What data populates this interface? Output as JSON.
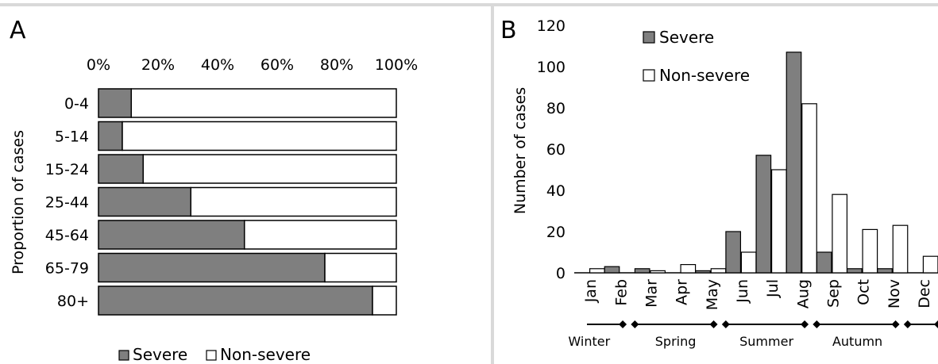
{
  "colors": {
    "severe": "#7f7f7f",
    "non_severe": "#ffffff",
    "outline": "#000000"
  },
  "panel_a": {
    "label": "A"
  },
  "panel_b": {
    "label": "B"
  },
  "chart_data": [
    {
      "type": "bar",
      "orientation": "horizontal",
      "stacked": "percent",
      "ylabel": "Proportion of cases",
      "categories": [
        "0-4",
        "5-14",
        "15-24",
        "25-44",
        "45-64",
        "65-79",
        "80+"
      ],
      "xticks": [
        "0%",
        "20%",
        "40%",
        "60%",
        "80%",
        "100%"
      ],
      "xlim": [
        0,
        100
      ],
      "series": [
        {
          "name": "Severe",
          "values": [
            11,
            8,
            15,
            31,
            49,
            76,
            92
          ]
        },
        {
          "name": "Non-severe",
          "values": [
            89,
            92,
            85,
            69,
            51,
            24,
            8
          ]
        }
      ],
      "legend": {
        "placement": "bottom",
        "items": [
          "Severe",
          "Non-severe"
        ]
      }
    },
    {
      "type": "bar",
      "ylabel": "Number of cases",
      "ylim": [
        0,
        120
      ],
      "yticks": [
        "0",
        "20",
        "40",
        "60",
        "80",
        "100",
        "120"
      ],
      "categories": [
        "Jan",
        "Feb",
        "Mar",
        "Apr",
        "May",
        "Jun",
        "Jul",
        "Aug",
        "Sep",
        "Oct",
        "Nov",
        "Dec"
      ],
      "series": [
        {
          "name": "Severe",
          "values": [
            0,
            3,
            2,
            0,
            1,
            20,
            57,
            107,
            10,
            2,
            2,
            0
          ]
        },
        {
          "name": "Non-severe",
          "values": [
            2,
            0,
            1,
            4,
            2,
            10,
            50,
            82,
            38,
            21,
            23,
            8
          ]
        }
      ],
      "seasons": [
        "Winter",
        "Spring",
        "Summer",
        "Autumn"
      ],
      "legend": {
        "placement": "top-left",
        "items": [
          "Severe",
          "Non-severe"
        ]
      }
    }
  ]
}
